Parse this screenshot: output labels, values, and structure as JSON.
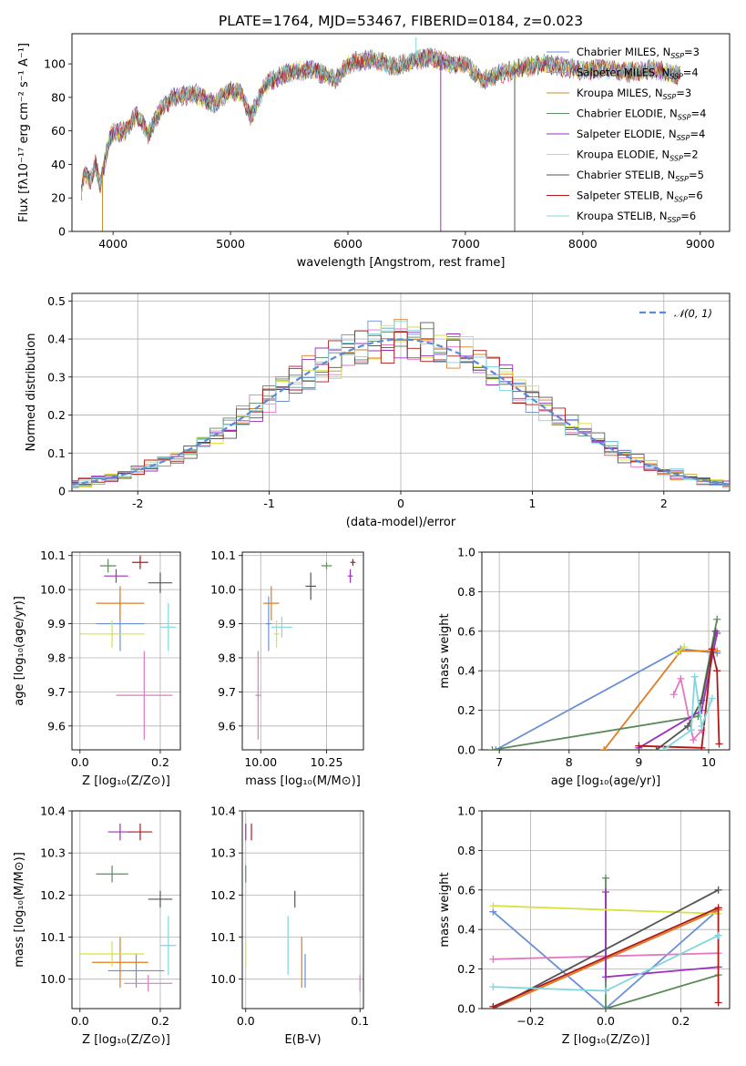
{
  "chart_data": [
    {
      "type": "line",
      "title": "PLATE=1764, MJD=53467, FIBERID=0184, z=0.023",
      "xlabel": "wavelength [Angstrom, rest frame]",
      "ylabel": "Flux [fλ10⁻¹⁷ erg cm⁻² s⁻¹ A⁻¹]",
      "xlim": [
        3650,
        9250
      ],
      "ylim": [
        0,
        118
      ],
      "xticks": [
        4000,
        5000,
        6000,
        7000,
        8000,
        9000
      ],
      "yticks": [
        0,
        20,
        40,
        60,
        80,
        100
      ],
      "grid": false,
      "legend_position": "top-right",
      "envelope_points": [
        [
          3730,
          25
        ],
        [
          3760,
          35
        ],
        [
          3800,
          30
        ],
        [
          3850,
          40
        ],
        [
          3890,
          28
        ],
        [
          3930,
          42
        ],
        [
          3980,
          58
        ],
        [
          4100,
          60
        ],
        [
          4200,
          70
        ],
        [
          4300,
          58
        ],
        [
          4400,
          72
        ],
        [
          4500,
          80
        ],
        [
          4700,
          82
        ],
        [
          4860,
          76
        ],
        [
          5000,
          84
        ],
        [
          5100,
          82
        ],
        [
          5170,
          68
        ],
        [
          5300,
          88
        ],
        [
          5500,
          95
        ],
        [
          5700,
          97
        ],
        [
          5890,
          90
        ],
        [
          6000,
          100
        ],
        [
          6200,
          103
        ],
        [
          6400,
          98
        ],
        [
          6563,
          102
        ],
        [
          6700,
          104
        ],
        [
          6900,
          100
        ],
        [
          7000,
          100
        ],
        [
          7150,
          90
        ],
        [
          7300,
          94
        ],
        [
          7500,
          98
        ],
        [
          7700,
          100
        ],
        [
          8000,
          96
        ],
        [
          8200,
          97
        ],
        [
          8400,
          95
        ],
        [
          8600,
          97
        ],
        [
          8800,
          93
        ]
      ],
      "spikes": [
        {
          "x": 3910,
          "y": 0
        },
        {
          "x": 6790,
          "y": 0
        },
        {
          "x": 7420,
          "y": 0
        },
        {
          "x": 6580,
          "y": 116
        }
      ],
      "series": [
        {
          "name": "Chabrier MILES, N_SSP=3",
          "color": "#6a8fd8"
        },
        {
          "name": "Salpeter MILES, N_SSP=4",
          "color": "#e377c2"
        },
        {
          "name": "Kroupa MILES, N_SSP=3",
          "color": "#c9902a"
        },
        {
          "name": "Chabrier ELODIE, N_SSP=4",
          "color": "#5a8c5a"
        },
        {
          "name": "Salpeter ELODIE, N_SSP=4",
          "color": "#9b30c0"
        },
        {
          "name": "Kroupa ELODIE, N_SSP=2",
          "color": "#d8e040"
        },
        {
          "name": "Chabrier STELIB, N_SSP=5",
          "color": "#555555"
        },
        {
          "name": "Salpeter STELIB, N_SSP=6",
          "color": "#b01818"
        },
        {
          "name": "Kroupa STELIB, N_SSP=6",
          "color": "#7fd6df"
        }
      ]
    },
    {
      "type": "line",
      "xlabel": "(data-model)/error",
      "ylabel": "Normed distribution",
      "xlim": [
        -2.5,
        2.5
      ],
      "ylim": [
        0,
        0.52
      ],
      "xticks": [
        -2,
        -1,
        0,
        1,
        2
      ],
      "yticks": [
        0.0,
        0.1,
        0.2,
        0.3,
        0.4,
        0.5
      ],
      "grid": true,
      "legend": "𝒩(0, 1)",
      "legend_position": "top-right",
      "histogram_colors": [
        "#6a8fd8",
        "#e377c2",
        "#e07b20",
        "#5a8c5a",
        "#9b30c0",
        "#d8e040",
        "#555555",
        "#b01818",
        "#7fd6df"
      ]
    },
    {
      "type": "scatter",
      "xlabel": "Z [log₁₀(Z/Z⊙)]",
      "ylabel": "age  [log₁₀(age/yr)]",
      "xlim": [
        -0.02,
        0.25
      ],
      "ylim": [
        9.53,
        10.11
      ],
      "xticks": [
        "0.0",
        "0.2"
      ],
      "yticks": [
        "9.6",
        "9.7",
        "9.8",
        "9.9",
        "10.0",
        "10.1"
      ],
      "grid": true,
      "points": [
        {
          "x": 0.1,
          "y": 9.9,
          "xerr": 0.06,
          "yerr": 0.08,
          "color": "#6a8fd8"
        },
        {
          "x": 0.16,
          "y": 9.69,
          "xerr": 0.07,
          "yerr": 0.13,
          "color": "#e377c2"
        },
        {
          "x": 0.1,
          "y": 9.96,
          "xerr": 0.06,
          "yerr": 0.05,
          "color": "#e07b20"
        },
        {
          "x": 0.07,
          "y": 10.07,
          "xerr": 0.02,
          "yerr": 0.02,
          "color": "#5a8c5a"
        },
        {
          "x": 0.09,
          "y": 10.04,
          "xerr": 0.03,
          "yerr": 0.02,
          "color": "#9b30c0"
        },
        {
          "x": 0.08,
          "y": 9.87,
          "xerr": 0.08,
          "yerr": 0.04,
          "color": "#d8e040"
        },
        {
          "x": 0.2,
          "y": 10.02,
          "xerr": 0.03,
          "yerr": 0.03,
          "color": "#555555"
        },
        {
          "x": 0.15,
          "y": 10.08,
          "xerr": 0.02,
          "yerr": 0.02,
          "color": "#b01818"
        },
        {
          "x": 0.22,
          "y": 9.89,
          "xerr": 0.02,
          "yerr": 0.07,
          "color": "#7fd6df"
        }
      ]
    },
    {
      "type": "scatter",
      "xlabel": "mass [log₁₀(M/M⊙)]",
      "ylabel": "",
      "xlim": [
        9.93,
        10.39
      ],
      "ylim": [
        9.53,
        10.11
      ],
      "xticks": [
        "10.00",
        "10.25"
      ],
      "yticks": [
        "9.6",
        "9.7",
        "9.8",
        "9.9",
        "10.0",
        "10.1"
      ],
      "grid": true,
      "points": [
        {
          "x": 10.03,
          "y": 9.9,
          "xerr": 0.01,
          "yerr": 0.08,
          "color": "#6a8fd8"
        },
        {
          "x": 9.99,
          "y": 9.69,
          "xerr": 0.01,
          "yerr": 0.13,
          "color": "#e377c2"
        },
        {
          "x": 10.04,
          "y": 9.96,
          "xerr": 0.03,
          "yerr": 0.05,
          "color": "#e07b20"
        },
        {
          "x": 10.25,
          "y": 10.07,
          "xerr": 0.02,
          "yerr": 0.01,
          "color": "#5a8c5a"
        },
        {
          "x": 10.34,
          "y": 10.04,
          "xerr": 0.01,
          "yerr": 0.02,
          "color": "#9b30c0"
        },
        {
          "x": 10.06,
          "y": 9.87,
          "xerr": 0.01,
          "yerr": 0.04,
          "color": "#d8e040"
        },
        {
          "x": 10.19,
          "y": 10.01,
          "xerr": 0.02,
          "yerr": 0.04,
          "color": "#555555"
        },
        {
          "x": 10.35,
          "y": 10.08,
          "xerr": 0.01,
          "yerr": 0.01,
          "color": "#b01818"
        },
        {
          "x": 10.08,
          "y": 9.89,
          "xerr": 0.04,
          "yerr": 0.03,
          "color": "#7fd6df"
        }
      ]
    },
    {
      "type": "line",
      "xlabel": "age  [log₁₀(age/yr)]",
      "ylabel": "mass weight",
      "xlim": [
        6.75,
        10.3
      ],
      "ylim": [
        0,
        1.0
      ],
      "xticks": [
        "7",
        "8",
        "9",
        "10"
      ],
      "yticks": [
        "0.0",
        "0.2",
        "0.4",
        "0.6",
        "0.8",
        "1.0"
      ],
      "grid": true,
      "series": [
        {
          "color": "#6a8fd8",
          "points": [
            [
              6.95,
              0.0
            ],
            [
              9.6,
              0.51
            ],
            [
              10.12,
              0.49
            ]
          ]
        },
        {
          "color": "#e07b20",
          "points": [
            [
              8.5,
              0.0
            ],
            [
              9.6,
              0.5
            ],
            [
              10.12,
              0.5
            ]
          ]
        },
        {
          "color": "#5a8c5a",
          "points": [
            [
              6.9,
              0.0
            ],
            [
              9.85,
              0.17
            ],
            [
              10.12,
              0.66
            ]
          ]
        },
        {
          "color": "#e377c2",
          "points": [
            [
              9.5,
              0.28
            ],
            [
              9.6,
              0.36
            ],
            [
              9.78,
              0.05
            ],
            [
              9.9,
              0.1
            ]
          ]
        },
        {
          "color": "#d8e040",
          "points": [
            [
              9.55,
              0.49
            ],
            [
              9.65,
              0.52
            ]
          ]
        },
        {
          "color": "#555555",
          "points": [
            [
              9.25,
              0.0
            ],
            [
              9.7,
              0.12
            ],
            [
              9.9,
              0.25
            ],
            [
              10.1,
              0.6
            ]
          ]
        },
        {
          "color": "#9b30c0",
          "points": [
            [
              9.0,
              0.01
            ],
            [
              9.9,
              0.2
            ],
            [
              10.12,
              0.59
            ]
          ]
        },
        {
          "color": "#b01818",
          "points": [
            [
              9.0,
              0.02
            ],
            [
              9.9,
              0.01
            ],
            [
              10.05,
              0.51
            ],
            [
              10.12,
              0.4
            ],
            [
              10.15,
              0.03
            ]
          ]
        },
        {
          "color": "#7fd6df",
          "points": [
            [
              9.35,
              0.0
            ],
            [
              9.75,
              0.1
            ],
            [
              9.8,
              0.37
            ],
            [
              9.9,
              0.12
            ],
            [
              10.05,
              0.26
            ]
          ]
        }
      ]
    },
    {
      "type": "scatter",
      "xlabel": "Z [log₁₀(Z/Z⊙)]",
      "ylabel": "mass [log₁₀(M/M⊙)]",
      "xlim": [
        -0.02,
        0.25
      ],
      "ylim": [
        9.93,
        10.4
      ],
      "xticks": [
        "0.0",
        "0.2"
      ],
      "yticks": [
        "10.0",
        "10.1",
        "10.2",
        "10.3",
        "10.4"
      ],
      "grid": true,
      "points": [
        {
          "x": 0.14,
          "y": 10.02,
          "xerr": 0.07,
          "yerr": 0.04,
          "color": "#6a8fd8"
        },
        {
          "x": 0.17,
          "y": 9.99,
          "xerr": 0.06,
          "yerr": 0.02,
          "color": "#e377c2"
        },
        {
          "x": 0.1,
          "y": 10.04,
          "xerr": 0.07,
          "yerr": 0.06,
          "color": "#e07b20"
        },
        {
          "x": 0.08,
          "y": 10.25,
          "xerr": 0.04,
          "yerr": 0.02,
          "color": "#5a8c5a"
        },
        {
          "x": 0.1,
          "y": 10.35,
          "xerr": 0.03,
          "yerr": 0.02,
          "color": "#9b30c0"
        },
        {
          "x": 0.08,
          "y": 10.06,
          "xerr": 0.08,
          "yerr": 0.03,
          "color": "#d8e040"
        },
        {
          "x": 0.2,
          "y": 10.19,
          "xerr": 0.03,
          "yerr": 0.02,
          "color": "#555555"
        },
        {
          "x": 0.15,
          "y": 10.35,
          "xerr": 0.03,
          "yerr": 0.02,
          "color": "#b01818"
        },
        {
          "x": 0.22,
          "y": 10.08,
          "xerr": 0.02,
          "yerr": 0.07,
          "color": "#7fd6df"
        }
      ]
    },
    {
      "type": "scatter",
      "xlabel": "E(B-V)",
      "ylabel": "",
      "xlim": [
        -0.003,
        0.103
      ],
      "ylim": [
        9.93,
        10.4
      ],
      "xticks": [
        "0.0",
        "0.1"
      ],
      "yticks": [
        "10.0",
        "10.1",
        "10.2",
        "10.3",
        "10.4"
      ],
      "grid": true,
      "points": [
        {
          "x": 0.052,
          "y": 10.02,
          "xerr": 0,
          "yerr": 0.04,
          "color": "#6a8fd8"
        },
        {
          "x": 0.1,
          "y": 9.99,
          "xerr": 0,
          "yerr": 0.02,
          "color": "#e377c2"
        },
        {
          "x": 0.049,
          "y": 10.04,
          "xerr": 0,
          "yerr": 0.06,
          "color": "#e07b20"
        },
        {
          "x": 0.0,
          "y": 10.25,
          "xerr": 0,
          "yerr": 0.02,
          "color": "#5a8c5a"
        },
        {
          "x": 0.0,
          "y": 10.35,
          "xerr": 0,
          "yerr": 0.02,
          "color": "#9b30c0"
        },
        {
          "x": 0.0,
          "y": 10.06,
          "xerr": 0,
          "yerr": 0.03,
          "color": "#d8e040"
        },
        {
          "x": 0.043,
          "y": 10.19,
          "xerr": 0,
          "yerr": 0.02,
          "color": "#555555"
        },
        {
          "x": 0.005,
          "y": 10.35,
          "xerr": 0,
          "yerr": 0.02,
          "color": "#b01818"
        },
        {
          "x": 0.037,
          "y": 10.08,
          "xerr": 0,
          "yerr": 0.07,
          "color": "#7fd6df"
        }
      ]
    },
    {
      "type": "line",
      "xlabel": "Z [log₁₀(Z/Z⊙)]",
      "ylabel": "mass weight",
      "xlim": [
        -0.33,
        0.33
      ],
      "ylim": [
        0,
        1.0
      ],
      "xticks": [
        "−0.2",
        "0.0",
        "0.2"
      ],
      "yticks": [
        "0.0",
        "0.2",
        "0.4",
        "0.6",
        "0.8",
        "1.0"
      ],
      "grid": true,
      "series": [
        {
          "color": "#6a8fd8",
          "points": [
            [
              -0.3,
              0.49
            ],
            [
              0.0,
              0.0
            ],
            [
              0.3,
              0.5
            ]
          ]
        },
        {
          "color": "#e377c2",
          "points": [
            [
              -0.3,
              0.25
            ],
            [
              0.3,
              0.28
            ]
          ]
        },
        {
          "color": "#e07b20",
          "points": [
            [
              -0.3,
              0.0
            ],
            [
              0.3,
              0.5
            ]
          ]
        },
        {
          "color": "#5a8c5a",
          "points": [
            [
              0.0,
              0.66
            ],
            [
              0.0,
              0.0
            ],
            [
              0.3,
              0.17
            ]
          ]
        },
        {
          "color": "#9b30c0",
          "points": [
            [
              0.0,
              0.59
            ],
            [
              0.0,
              0.16
            ],
            [
              0.3,
              0.21
            ]
          ]
        },
        {
          "color": "#d8e040",
          "points": [
            [
              -0.3,
              0.52
            ],
            [
              0.3,
              0.48
            ]
          ]
        },
        {
          "color": "#555555",
          "points": [
            [
              -0.3,
              0.0
            ],
            [
              0.3,
              0.6
            ]
          ]
        },
        {
          "color": "#b01818",
          "points": [
            [
              -0.3,
              0.01
            ],
            [
              0.3,
              0.51
            ],
            [
              0.3,
              0.03
            ]
          ]
        },
        {
          "color": "#7fd6df",
          "points": [
            [
              -0.3,
              0.11
            ],
            [
              0.0,
              0.09
            ],
            [
              0.3,
              0.37
            ]
          ]
        }
      ]
    }
  ]
}
